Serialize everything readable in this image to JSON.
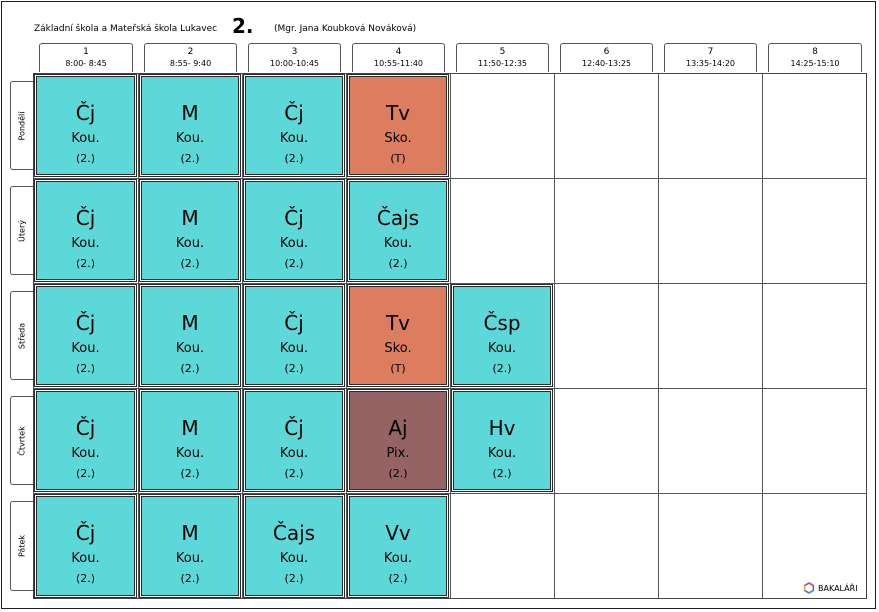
{
  "header": {
    "school": "Základní škola a Mateřská škola Lukavec",
    "class": "2.",
    "teacher": "(Mgr. Jana Koubková Nováková)"
  },
  "periods": [
    {
      "num": "1",
      "time": "8:00- 8:45"
    },
    {
      "num": "2",
      "time": "8:55- 9:40"
    },
    {
      "num": "3",
      "time": "10:00-10:45"
    },
    {
      "num": "4",
      "time": "10:55-11:40"
    },
    {
      "num": "5",
      "time": "11:50-12:35"
    },
    {
      "num": "6",
      "time": "12:40-13:25"
    },
    {
      "num": "7",
      "time": "13:35-14:20"
    },
    {
      "num": "8",
      "time": "14:25-15:10"
    }
  ],
  "days": [
    "Pondělí",
    "Úterý",
    "Středa",
    "Čtvrtek",
    "Pátek"
  ],
  "lessons": [
    {
      "day": 0,
      "period": 0,
      "subject": "Čj",
      "teacher": "Kou.",
      "group": "(2.)",
      "color": "#5cd8d8"
    },
    {
      "day": 0,
      "period": 1,
      "subject": "M",
      "teacher": "Kou.",
      "group": "(2.)",
      "color": "#5cd8d8"
    },
    {
      "day": 0,
      "period": 2,
      "subject": "Čj",
      "teacher": "Kou.",
      "group": "(2.)",
      "color": "#5cd8d8"
    },
    {
      "day": 0,
      "period": 3,
      "subject": "Tv",
      "teacher": "Sko.",
      "group": "(T)",
      "color": "#db7d5e"
    },
    {
      "day": 1,
      "period": 0,
      "subject": "Čj",
      "teacher": "Kou.",
      "group": "(2.)",
      "color": "#5cd8d8"
    },
    {
      "day": 1,
      "period": 1,
      "subject": "M",
      "teacher": "Kou.",
      "group": "(2.)",
      "color": "#5cd8d8"
    },
    {
      "day": 1,
      "period": 2,
      "subject": "Čj",
      "teacher": "Kou.",
      "group": "(2.)",
      "color": "#5cd8d8"
    },
    {
      "day": 1,
      "period": 3,
      "subject": "Čajs",
      "teacher": "Kou.",
      "group": "(2.)",
      "color": "#5cd8d8"
    },
    {
      "day": 2,
      "period": 0,
      "subject": "Čj",
      "teacher": "Kou.",
      "group": "(2.)",
      "color": "#5cd8d8"
    },
    {
      "day": 2,
      "period": 1,
      "subject": "M",
      "teacher": "Kou.",
      "group": "(2.)",
      "color": "#5cd8d8"
    },
    {
      "day": 2,
      "period": 2,
      "subject": "Čj",
      "teacher": "Kou.",
      "group": "(2.)",
      "color": "#5cd8d8"
    },
    {
      "day": 2,
      "period": 3,
      "subject": "Tv",
      "teacher": "Sko.",
      "group": "(T)",
      "color": "#db7d5e"
    },
    {
      "day": 2,
      "period": 4,
      "subject": "Čsp",
      "teacher": "Kou.",
      "group": "(2.)",
      "color": "#5cd8d8"
    },
    {
      "day": 3,
      "period": 0,
      "subject": "Čj",
      "teacher": "Kou.",
      "group": "(2.)",
      "color": "#5cd8d8"
    },
    {
      "day": 3,
      "period": 1,
      "subject": "M",
      "teacher": "Kou.",
      "group": "(2.)",
      "color": "#5cd8d8"
    },
    {
      "day": 3,
      "period": 2,
      "subject": "Čj",
      "teacher": "Kou.",
      "group": "(2.)",
      "color": "#5cd8d8"
    },
    {
      "day": 3,
      "period": 3,
      "subject": "Aj",
      "teacher": "Pix.",
      "group": "(2.)",
      "color": "#956363"
    },
    {
      "day": 3,
      "period": 4,
      "subject": "Hv",
      "teacher": "Kou.",
      "group": "(2.)",
      "color": "#5cd8d8"
    },
    {
      "day": 4,
      "period": 0,
      "subject": "Čj",
      "teacher": "Kou.",
      "group": "(2.)",
      "color": "#5cd8d8"
    },
    {
      "day": 4,
      "period": 1,
      "subject": "M",
      "teacher": "Kou.",
      "group": "(2.)",
      "color": "#5cd8d8"
    },
    {
      "day": 4,
      "period": 2,
      "subject": "Čajs",
      "teacher": "Kou.",
      "group": "(2.)",
      "color": "#5cd8d8"
    },
    {
      "day": 4,
      "period": 3,
      "subject": "Vv",
      "teacher": "Kou.",
      "group": "(2.)",
      "color": "#5cd8d8"
    }
  ],
  "footer": {
    "logo_text": "BAKALÁŘI",
    "logo_icon": "bakalari-logo-icon"
  }
}
